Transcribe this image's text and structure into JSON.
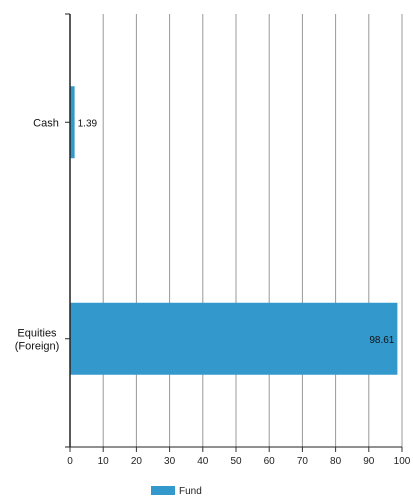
{
  "chart_data": {
    "type": "bar",
    "orientation": "horizontal",
    "categories": [
      "Cash",
      "Equities (Foreign)"
    ],
    "category_lines": [
      [
        "Cash"
      ],
      [
        "Equities",
        "(Foreign)"
      ]
    ],
    "series": [
      {
        "name": "Fund",
        "values": [
          1.39,
          98.61
        ],
        "color": "#3399cc"
      }
    ],
    "data_labels": [
      "1.39",
      "98.61"
    ],
    "xlim": [
      0,
      100
    ],
    "xticks": [
      0,
      10,
      20,
      30,
      40,
      50,
      60,
      70,
      80,
      90,
      100
    ],
    "xtick_labels": [
      "0",
      "10",
      "20",
      "30",
      "40",
      "50",
      "60",
      "70",
      "80",
      "90",
      "100"
    ],
    "title": "",
    "xlabel": "",
    "ylabel": "",
    "grid": "vertical",
    "legend": "bottom"
  }
}
